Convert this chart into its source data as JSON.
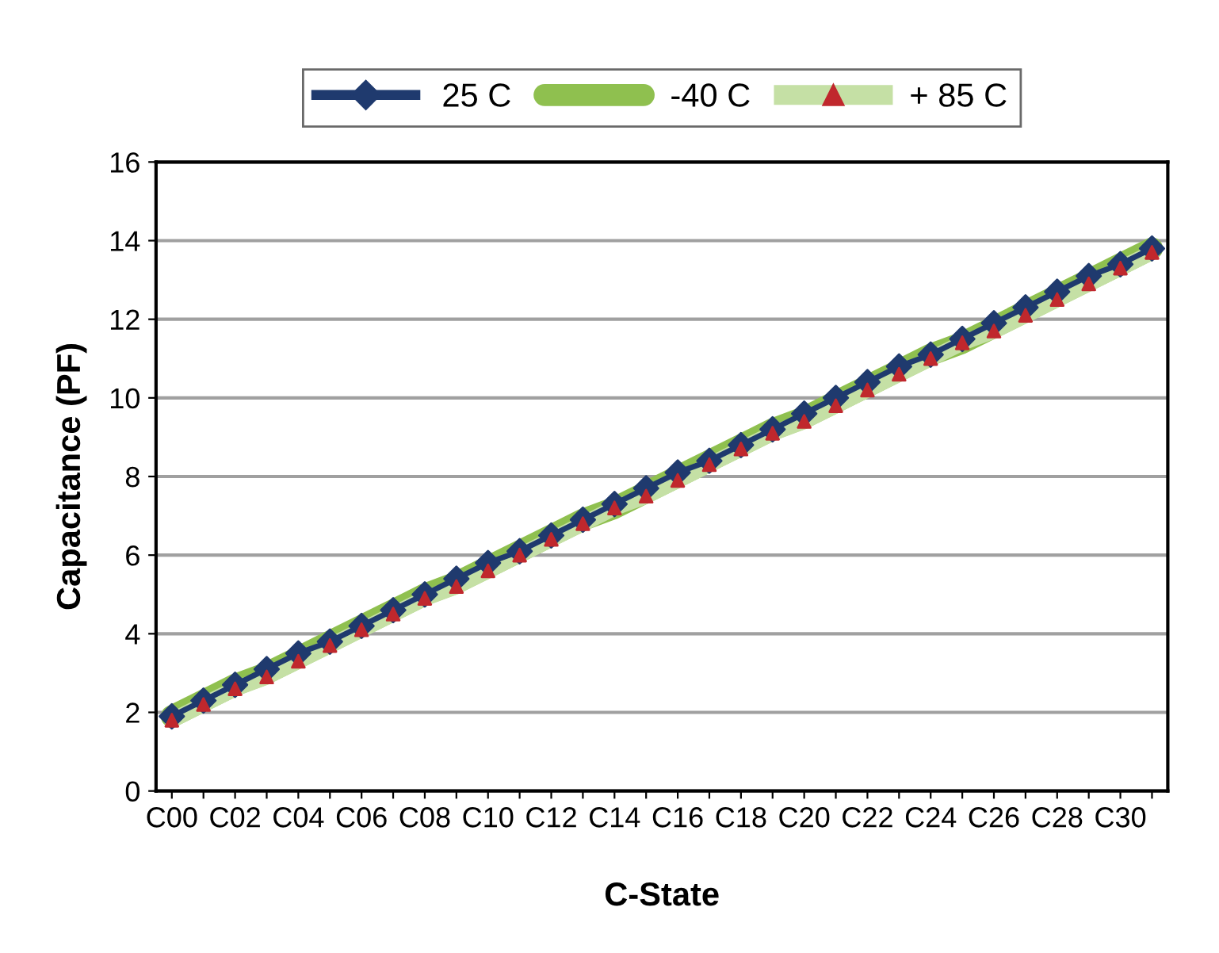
{
  "chart_data": {
    "type": "line",
    "xlabel": "C-State",
    "ylabel": "Capacitance (PF)",
    "categories": [
      "C00",
      null,
      "C02",
      null,
      "C04",
      null,
      "C06",
      null,
      "C08",
      null,
      "C10",
      null,
      "C12",
      null,
      "C14",
      null,
      "C16",
      null,
      "C18",
      null,
      "C20",
      null,
      "C22",
      null,
      "C24",
      null,
      "C26",
      null,
      "C28",
      null,
      "C30",
      null
    ],
    "series": [
      {
        "name": "25 C",
        "color": "#1f3a6e",
        "marker": "diamond",
        "values": [
          1.9,
          2.3,
          2.7,
          3.1,
          3.5,
          3.8,
          4.2,
          4.6,
          5.0,
          5.4,
          5.8,
          6.1,
          6.5,
          6.9,
          7.3,
          7.7,
          8.1,
          8.4,
          8.8,
          9.2,
          9.6,
          10.0,
          10.4,
          10.8,
          11.1,
          11.5,
          11.9,
          12.3,
          12.7,
          13.1,
          13.4,
          13.8
        ]
      },
      {
        "name": "-40 C",
        "color": "#8fc04f",
        "values": [
          1.9,
          2.3,
          2.7,
          3.0,
          3.4,
          3.8,
          4.2,
          4.6,
          5.0,
          5.3,
          5.7,
          6.1,
          6.5,
          6.9,
          7.2,
          7.6,
          8.0,
          8.4,
          8.8,
          9.2,
          9.5,
          9.9,
          10.3,
          10.7,
          11.1,
          11.4,
          11.8,
          12.2,
          12.6,
          13.0,
          13.4,
          13.8
        ]
      },
      {
        "name": "+ 85 C",
        "color": "#c5e0a5",
        "marker": "triangle",
        "colors": [
          "#c0282d",
          "#c0282d",
          "#c0282d",
          "#c0282d",
          "#c0282d",
          "#c0282d",
          "#c0282d",
          "#c0282d",
          "#c0282d",
          "#c0282d",
          "#c0282d",
          "#c0282d",
          "#c0282d",
          "#c0282d",
          "#c0282d",
          "#c0282d",
          "#c0282d",
          "#c0282d",
          "#c0282d",
          "#c0282d",
          "#c0282d",
          "#c0282d",
          "#c0282d",
          "#c0282d",
          "#c0282d",
          "#c0282d",
          "#c0282d",
          "#c0282d",
          "#c0282d",
          "#c0282d",
          "#c0282d",
          "#c0282d"
        ],
        "values": [
          1.8,
          2.2,
          2.6,
          2.9,
          3.3,
          3.7,
          4.1,
          4.5,
          4.9,
          5.2,
          5.6,
          6.0,
          6.4,
          6.8,
          7.2,
          7.5,
          7.9,
          8.3,
          8.7,
          9.1,
          9.4,
          9.8,
          10.2,
          10.6,
          11.0,
          11.4,
          11.7,
          12.1,
          12.5,
          12.9,
          13.3,
          13.7
        ]
      }
    ],
    "ylim": [
      0,
      16
    ],
    "yticks": [
      0,
      2,
      4,
      6,
      8,
      10,
      12,
      14,
      16
    ],
    "grid": "y",
    "legend": "top"
  }
}
